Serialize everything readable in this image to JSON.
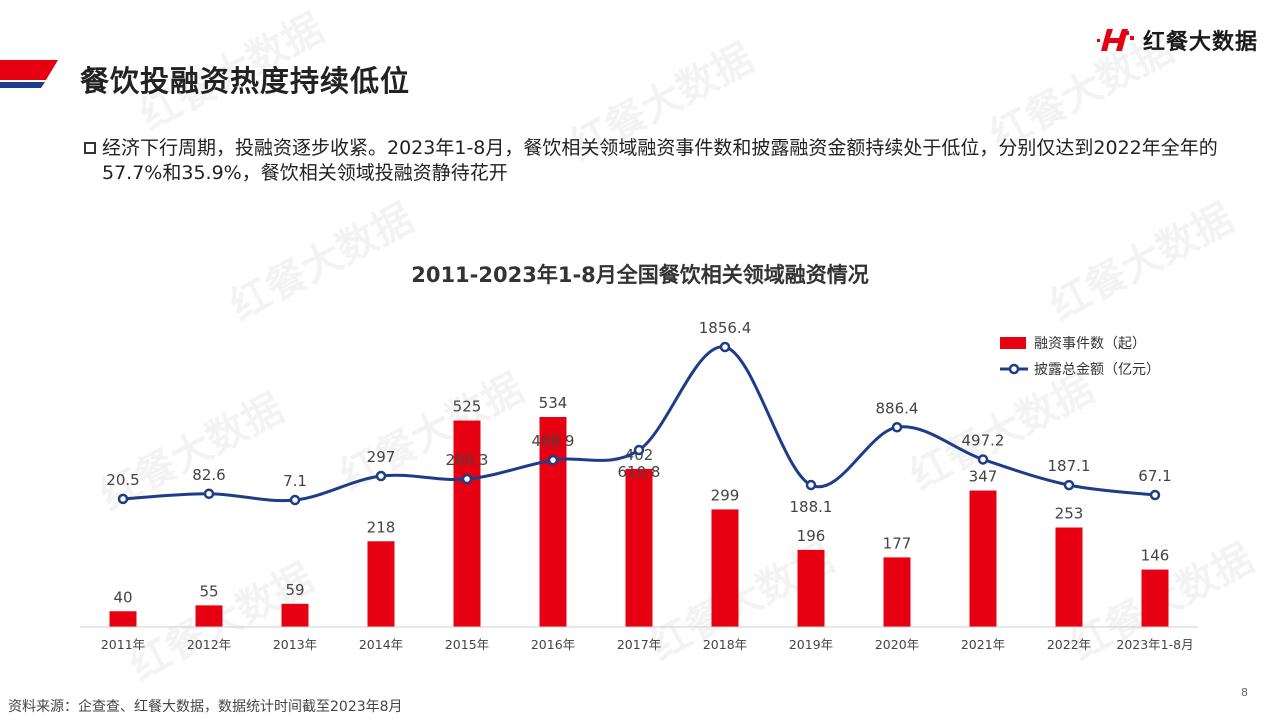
{
  "page": {
    "title": "餐饮投融资热度持续低位",
    "logo_text": "红餐大数据",
    "bullet": "经济下行周期，投融资逐步收紧。2023年1-8月，餐饮相关领域融资事件数和披露融资金额持续处于低位，分别仅达到2022年全年的57.7%和35.9%，餐饮相关领域投融资静待花开",
    "source": "资料来源：企查查、红餐大数据，数据统计时间截至2023年8月",
    "page_number": "8",
    "watermark": "红餐大数据"
  },
  "colors": {
    "bar": "#e60012",
    "line": "#1f3c88",
    "accent_red": "#e60012",
    "accent_blue": "#1f3c88"
  },
  "chart_data": {
    "type": "bar+line",
    "title": "2011-2023年1-8月全国餐饮相关领域融资情况",
    "categories": [
      "2011年",
      "2012年",
      "2013年",
      "2014年",
      "2015年",
      "2016年",
      "2017年",
      "2018年",
      "2019年",
      "2020年",
      "2021年",
      "2022年",
      "2023年1-8月"
    ],
    "series": [
      {
        "name": "融资事件数（起）",
        "type": "bar",
        "values": [
          40,
          55,
          59,
          218,
          525,
          534,
          402,
          299,
          196,
          177,
          347,
          253,
          146
        ],
        "labels": [
          "40",
          "55",
          "59",
          "218",
          "525",
          "534",
          "402",
          "299",
          "196",
          "177",
          "347",
          "253",
          "146"
        ]
      },
      {
        "name": "披露总金额（亿元）",
        "type": "line",
        "values": [
          20.5,
          82.6,
          7.1,
          297,
          260.3,
          488.9,
          610.8,
          1856.4,
          188.1,
          886.4,
          497.2,
          187.1,
          67.1
        ],
        "labels": [
          "20.5",
          "82.6",
          "7.1",
          "297",
          "260.3",
          "488.9",
          "610.8",
          "1856.4",
          "188.1",
          "886.4",
          "497.2",
          "187.1",
          "67.1"
        ]
      }
    ],
    "legend_position": "top-right",
    "grid": false
  }
}
